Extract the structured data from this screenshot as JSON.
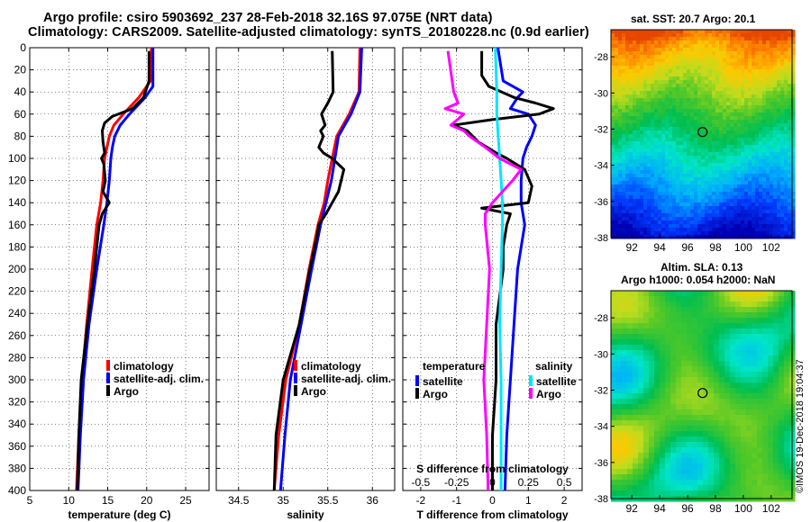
{
  "title": {
    "line1": "Argo profile: csiro 5903692_237 28-Feb-2018 32.16S 97.075E (NRT data)",
    "line2": "Climatology: CARS2009. Satellite-adjusted climatology: synTS_20180228.nc (0.9d earlier)"
  },
  "colors": {
    "climatology": "#ff0000",
    "satellite": "#0000ff",
    "argo": "#000000",
    "salinity_satellite": "#00e5ff",
    "salinity_argo": "#ff00ff"
  },
  "depth_ticks": [
    "0",
    "20",
    "40",
    "60",
    "80",
    "100",
    "120",
    "140",
    "160",
    "180",
    "200",
    "220",
    "240",
    "260",
    "280",
    "300",
    "320",
    "340",
    "360",
    "380",
    "400"
  ],
  "chart_data": [
    {
      "type": "line",
      "name": "temperature-panel",
      "xlabel": "temperature (deg C)",
      "ylabel": "",
      "xlim": [
        5,
        28
      ],
      "ylim": [
        400,
        0
      ],
      "xticks": [
        "5",
        "10",
        "15",
        "20",
        "25"
      ],
      "legend": [
        "climatology",
        "satellite-adj. clim.",
        "Argo"
      ],
      "series": [
        {
          "name": "climatology",
          "color": "#ff0000",
          "depth": [
            0,
            30,
            45,
            60,
            70,
            80,
            90,
            100,
            120,
            140,
            160,
            200,
            250,
            300,
            350,
            400
          ],
          "values": [
            20.6,
            20.5,
            19.0,
            17.0,
            15.8,
            15.2,
            14.9,
            14.6,
            14.4,
            14.1,
            13.6,
            13.0,
            12.3,
            11.7,
            11.3,
            11.0
          ]
        },
        {
          "name": "satellite-adj. clim.",
          "color": "#0000ff",
          "depth": [
            0,
            35,
            45,
            60,
            70,
            80,
            90,
            100,
            120,
            140,
            160,
            200,
            250,
            300,
            350,
            400
          ],
          "values": [
            20.8,
            20.8,
            19.8,
            17.8,
            16.6,
            15.9,
            15.6,
            15.4,
            15.2,
            14.9,
            14.5,
            13.6,
            12.6,
            11.9,
            11.5,
            11.2
          ]
        },
        {
          "name": "Argo",
          "color": "#000000",
          "depth": [
            3,
            30,
            45,
            55,
            62,
            68,
            75,
            85,
            95,
            100,
            105,
            120,
            130,
            140,
            150,
            160,
            200,
            250,
            300,
            350,
            400
          ],
          "values": [
            20.3,
            20.3,
            19.6,
            18.2,
            15.6,
            14.6,
            14.3,
            14.4,
            14.6,
            14.2,
            14.5,
            14.7,
            14.4,
            15.2,
            14.3,
            13.9,
            13.3,
            12.4,
            11.6,
            11.3,
            11.1
          ]
        }
      ]
    },
    {
      "type": "line",
      "name": "salinity-panel",
      "xlabel": "salinity",
      "ylabel": "",
      "xlim": [
        34.25,
        36.25
      ],
      "ylim": [
        400,
        0
      ],
      "xticks": [
        "34.5",
        "35",
        "35.5",
        "36"
      ],
      "legend": [
        "climatology",
        "satellite-adj. clim.",
        "Argo"
      ],
      "series": [
        {
          "name": "climatology",
          "color": "#ff0000",
          "depth": [
            0,
            40,
            60,
            80,
            100,
            120,
            140,
            160,
            200,
            250,
            300,
            350,
            400
          ],
          "values": [
            35.86,
            35.85,
            35.74,
            35.6,
            35.55,
            35.5,
            35.46,
            35.39,
            35.29,
            35.18,
            35.03,
            34.95,
            34.9
          ],
          "_ref": 1
        },
        {
          "name": "satellite-adj. clim.",
          "color": "#0000ff",
          "depth": [
            0,
            40,
            60,
            80,
            100,
            120,
            140,
            160,
            200,
            250,
            300,
            350,
            400
          ],
          "values": [
            35.88,
            35.86,
            35.76,
            35.62,
            35.58,
            35.54,
            35.48,
            35.42,
            35.32,
            35.2,
            35.08,
            35.02,
            34.97
          ]
        },
        {
          "name": "Argo",
          "color": "#000000",
          "depth": [
            3,
            40,
            50,
            60,
            70,
            75,
            80,
            90,
            95,
            100,
            110,
            120,
            130,
            140,
            150,
            160,
            170,
            200,
            250,
            300,
            350,
            400
          ],
          "values": [
            35.55,
            35.56,
            35.5,
            35.43,
            35.47,
            35.42,
            35.45,
            35.4,
            35.45,
            35.55,
            35.68,
            35.65,
            35.62,
            35.55,
            35.48,
            35.4,
            35.38,
            35.3,
            35.18,
            35.0,
            34.92,
            34.9
          ]
        }
      ]
    },
    {
      "type": "line",
      "name": "difference-panel",
      "xlabel": "T difference from climatology",
      "xlabel_top": "S difference from climatology",
      "xlim": [
        -2.5,
        2.5
      ],
      "ylim": [
        400,
        0
      ],
      "xticks": [
        "-2",
        "-1",
        "0",
        "1",
        "2"
      ],
      "sticks": [
        "-0.5",
        "-0.25",
        "0",
        "0.25",
        "0.5"
      ],
      "legend_temperature_title": "temperature",
      "legend_salinity_title": "salinity",
      "legend_temperature": [
        "satellite",
        "Argo"
      ],
      "legend_salinity": [
        "satellite",
        "Argo"
      ],
      "series": [
        {
          "name": "T satellite",
          "color": "#0000ff",
          "depth": [
            0,
            30,
            40,
            45,
            55,
            60,
            70,
            80,
            90,
            100,
            120,
            140,
            160,
            200,
            250,
            300,
            350,
            400
          ],
          "values": [
            0.15,
            0.3,
            0.85,
            0.7,
            0.5,
            1.0,
            1.2,
            1.1,
            0.95,
            0.85,
            0.8,
            0.8,
            0.9,
            0.7,
            0.6,
            0.5,
            0.4,
            0.35
          ]
        },
        {
          "name": "T Argo",
          "color": "#000000",
          "depth": [
            3,
            25,
            35,
            45,
            50,
            55,
            60,
            65,
            70,
            75,
            85,
            95,
            100,
            110,
            125,
            140,
            145,
            150,
            160,
            180,
            200,
            250,
            300,
            350,
            400
          ],
          "values": [
            -0.3,
            -0.3,
            -0.1,
            0.6,
            1.2,
            1.7,
            1.3,
            0.0,
            -1.1,
            -0.7,
            -0.4,
            0.1,
            0.4,
            0.9,
            1.1,
            1.0,
            -0.3,
            0.5,
            0.4,
            0.3,
            0.3,
            0.1,
            0.1,
            0.0,
            0.0
          ]
        },
        {
          "name": "S satellite",
          "color": "#00e5ff",
          "depth": [
            0,
            40,
            60,
            80,
            100,
            120,
            140,
            160,
            200,
            250,
            300,
            350,
            400
          ],
          "values": [
            0.02,
            0.03,
            0.03,
            0.04,
            0.05,
            0.06,
            0.07,
            0.07,
            0.06,
            0.05,
            0.06,
            0.06,
            0.06
          ]
        },
        {
          "name": "S Argo",
          "color": "#ff00ff",
          "depth": [
            3,
            40,
            50,
            55,
            60,
            70,
            75,
            80,
            90,
            100,
            110,
            120,
            140,
            150,
            160,
            200,
            250,
            300,
            350,
            400
          ],
          "values": [
            -0.31,
            -0.27,
            -0.24,
            -0.33,
            -0.2,
            -0.29,
            -0.2,
            -0.16,
            -0.05,
            0.05,
            0.2,
            0.14,
            0.0,
            -0.05,
            -0.05,
            -0.02,
            -0.04,
            -0.06,
            -0.04,
            -0.03
          ]
        }
      ]
    },
    {
      "type": "heatmap",
      "name": "sst-map",
      "title": "sat. SST: 20.7 Argo: 20.1",
      "xticks": [
        "92",
        "94",
        "96",
        "98",
        "100",
        "102"
      ],
      "yticks": [
        "-28",
        "-30",
        "-32",
        "-34",
        "-36",
        "-38"
      ],
      "xlim": [
        90.5,
        103.5
      ],
      "ylim": [
        -38,
        -26.5
      ],
      "marker": {
        "lon": 97.075,
        "lat": -32.16
      }
    },
    {
      "type": "heatmap",
      "name": "sla-map",
      "title_line1": "Altim. SLA: 0.13",
      "title_line2": "Argo h1000: 0.054 h2000: NaN",
      "xticks": [
        "92",
        "94",
        "96",
        "98",
        "100",
        "102"
      ],
      "yticks": [
        "-28",
        "-30",
        "-32",
        "-34",
        "-36",
        "-38"
      ],
      "xlim": [
        90.5,
        103.5
      ],
      "ylim": [
        -38,
        -26.5
      ],
      "marker": {
        "lon": 97.075,
        "lat": -32.16
      }
    }
  ],
  "stamp": "©IMOS 19-Dec-2018 19:04:37"
}
